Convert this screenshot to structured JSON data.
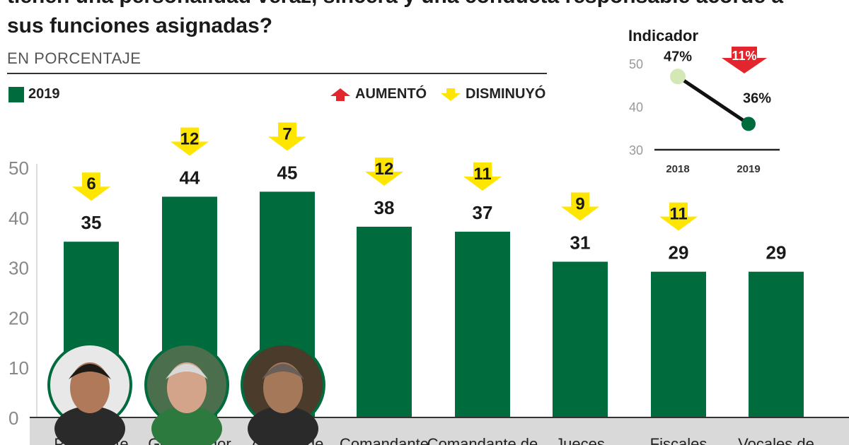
{
  "chart_data": [
    {
      "type": "bar",
      "title_lines": [
        "tienen una personalidad veraz, sincera y una conducta responsable acorde a",
        "sus funciones asignadas?"
      ],
      "subtitle": "EN PORCENTAJE",
      "legend": {
        "series_label": "2019",
        "up_label": "AUMENTÓ",
        "down_label": "DISMINUYÓ"
      },
      "ylim": [
        0,
        50
      ],
      "yticks": [
        "0",
        "10",
        "20",
        "30",
        "40",
        "50"
      ],
      "categories": [
        "Presidente",
        "Gobernador",
        "Alcalde de",
        "Comandante",
        "Comandante de",
        "Jueces",
        "Fiscales",
        "Vocales de"
      ],
      "series": [
        {
          "name": "2019",
          "values": [
            35,
            44,
            45,
            38,
            37,
            31,
            29,
            29
          ]
        }
      ],
      "value_labels": [
        "35",
        "44",
        "45",
        "38",
        "37",
        "31",
        "29",
        "29"
      ],
      "changes": [
        {
          "direction": "down",
          "label": "6"
        },
        {
          "direction": "down",
          "label": "12"
        },
        {
          "direction": "down",
          "label": "7"
        },
        {
          "direction": "down",
          "label": "12"
        },
        {
          "direction": "down",
          "label": "11"
        },
        {
          "direction": "down",
          "label": "9"
        },
        {
          "direction": "down",
          "label": "11"
        },
        null
      ],
      "photos": [
        "president-portrait",
        "governor-portrait",
        "mayor-portrait"
      ],
      "colors": {
        "bar": "#006b3c",
        "down_arrow": "#ffe600",
        "up_arrow": "#e3262d",
        "axis_band": "#d9d9d9"
      }
    },
    {
      "type": "line",
      "title": "Indicador",
      "x": [
        "2018",
        "2019"
      ],
      "y": [
        47,
        36
      ],
      "point_labels": [
        "47%",
        "36%"
      ],
      "ylim": [
        30,
        50
      ],
      "yticks": [
        "30",
        "40",
        "50"
      ],
      "change": {
        "direction": "down",
        "label": "11%"
      },
      "colors": {
        "line": "#111111",
        "point_2018": "#d4e8b6",
        "point_2019": "#006b3c",
        "down_arrow": "#e3262d"
      }
    }
  ]
}
